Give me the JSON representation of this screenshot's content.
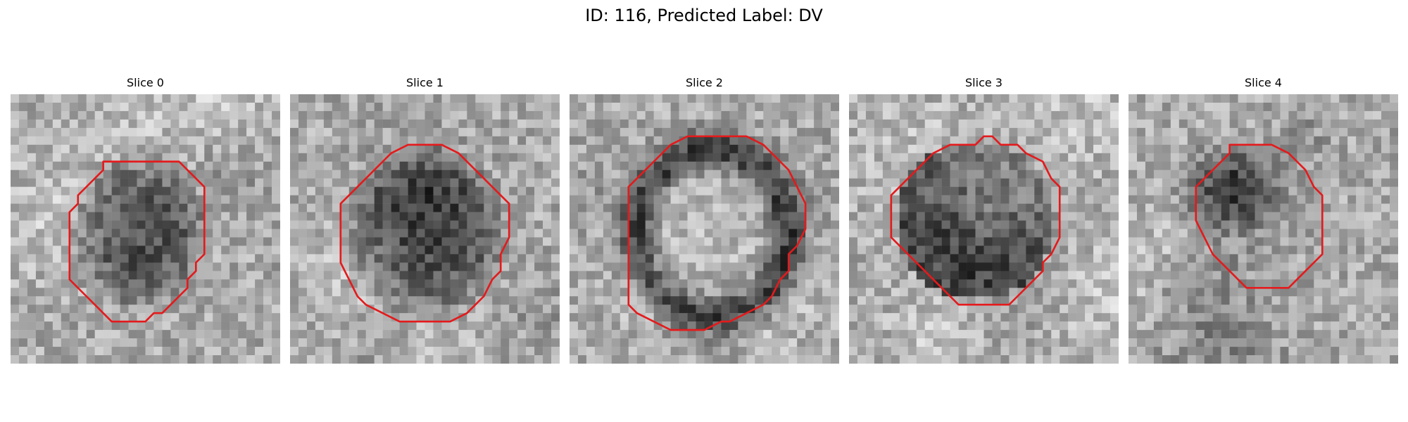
{
  "figure": {
    "title": "ID: 116, Predicted Label: DV"
  },
  "slices": [
    {
      "label": "Slice 0",
      "core": "dark"
    },
    {
      "label": "Slice 1",
      "core": "dark"
    },
    {
      "label": "Slice 2",
      "core": "ring"
    },
    {
      "label": "Slice 3",
      "core": "mixed"
    },
    {
      "label": "Slice 4",
      "core": "dark-upper"
    }
  ],
  "colors": {
    "contour": "#e41a1c",
    "background": "#ffffff"
  }
}
